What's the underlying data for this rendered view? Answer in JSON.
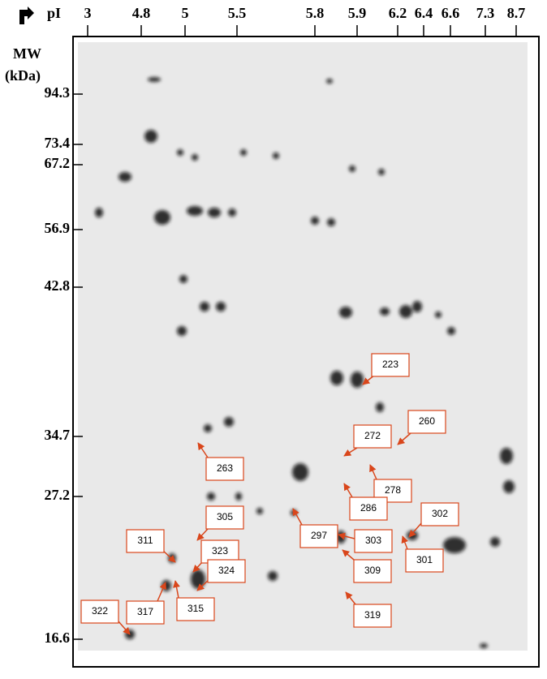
{
  "header": {
    "pi_label": "pI",
    "mw_label": "MW",
    "mw_unit": "(kDa)"
  },
  "pi_axis": [
    "3",
    "4.8",
    "5",
    "5.5",
    "5.8",
    "5.9",
    "6.2",
    "6.4",
    "6.6",
    "7.3",
    "8.7"
  ],
  "mw_axis": [
    "94.3",
    "73.4",
    "67.2",
    "56.9",
    "42.8",
    "34.7",
    "27.2",
    "16.6"
  ],
  "spots": [
    {
      "label": "223"
    },
    {
      "label": "260"
    },
    {
      "label": "272"
    },
    {
      "label": "263"
    },
    {
      "label": "278"
    },
    {
      "label": "286"
    },
    {
      "label": "305"
    },
    {
      "label": "297"
    },
    {
      "label": "303"
    },
    {
      "label": "302"
    },
    {
      "label": "311"
    },
    {
      "label": "323"
    },
    {
      "label": "324"
    },
    {
      "label": "301"
    },
    {
      "label": "309"
    },
    {
      "label": "317"
    },
    {
      "label": "315"
    },
    {
      "label": "319"
    },
    {
      "label": "322"
    }
  ]
}
